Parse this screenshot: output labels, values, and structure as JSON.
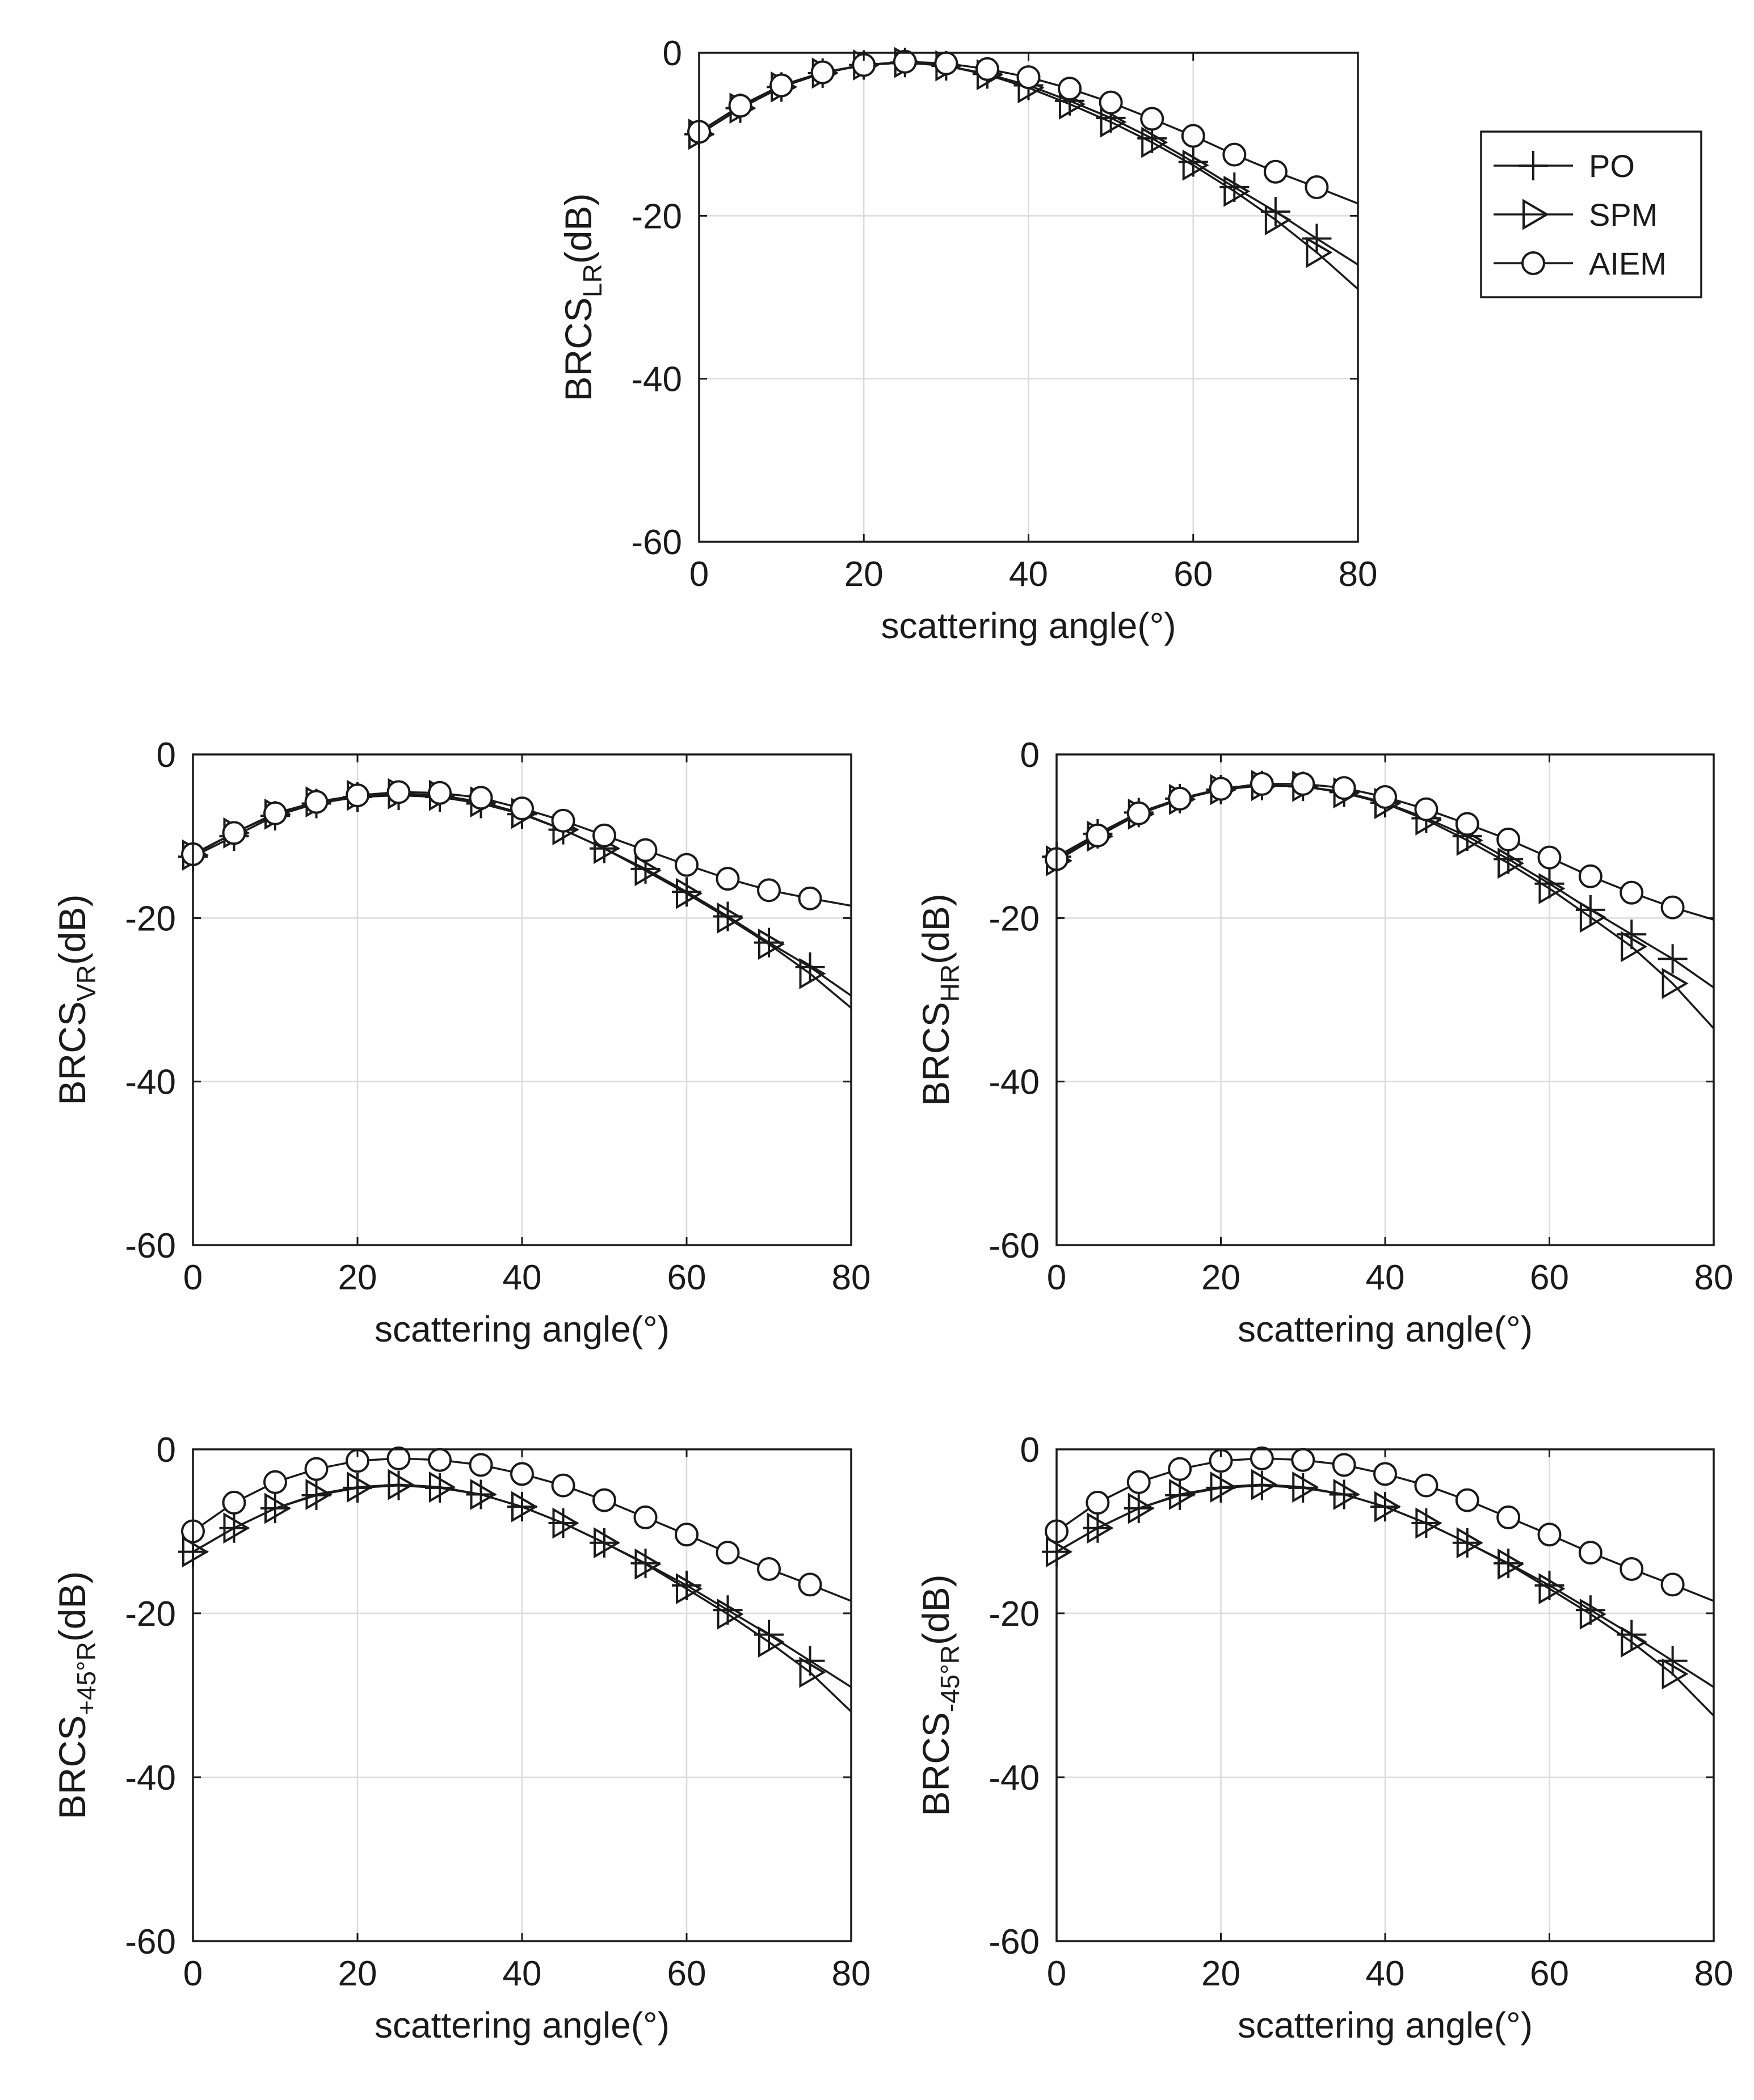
{
  "legend": {
    "entries": [
      {
        "name": "PO",
        "marker": "plus"
      },
      {
        "name": "SPM",
        "marker": "triangle-right"
      },
      {
        "name": "AIEM",
        "marker": "circle"
      }
    ],
    "placement": "right of top chart"
  },
  "chart_data": [
    {
      "id": "lr",
      "type": "line",
      "title": "",
      "xlabel": "scattering angle(°)",
      "ylabel": {
        "main": "BRCS",
        "sub": "LR",
        "suffix": "(dB)"
      },
      "xlim": [
        0,
        80
      ],
      "ylim": [
        -60,
        0
      ],
      "xticks": [
        0,
        20,
        40,
        60,
        80
      ],
      "yticks": [
        0,
        -20,
        -40,
        -60
      ],
      "grid": true,
      "series": [
        {
          "name": "PO",
          "marker": "plus",
          "x": [
            0,
            5,
            10,
            15,
            20,
            25,
            30,
            35,
            40,
            45,
            50,
            55,
            60,
            65,
            70,
            75,
            80
          ],
          "y": [
            -10,
            -6.8,
            -4.2,
            -2.5,
            -1.5,
            -1.2,
            -1.6,
            -2.6,
            -4,
            -5.9,
            -8,
            -10.5,
            -13.4,
            -16.5,
            -19.5,
            -22.8,
            -26
          ]
        },
        {
          "name": "SPM",
          "marker": "triangle-right",
          "x": [
            0,
            5,
            10,
            15,
            20,
            25,
            30,
            35,
            40,
            45,
            50,
            55,
            60,
            65,
            70,
            75,
            80
          ],
          "y": [
            -10,
            -6.8,
            -4.2,
            -2.5,
            -1.5,
            -1.2,
            -1.6,
            -2.7,
            -4.3,
            -6.3,
            -8.5,
            -11,
            -13.8,
            -17,
            -20.5,
            -24.5,
            -29
          ]
        },
        {
          "name": "AIEM",
          "marker": "circle",
          "x": [
            0,
            5,
            10,
            15,
            20,
            25,
            30,
            35,
            40,
            45,
            50,
            55,
            60,
            65,
            70,
            75,
            80
          ],
          "y": [
            -9.7,
            -6.5,
            -4,
            -2.4,
            -1.5,
            -1.1,
            -1.3,
            -2,
            -3,
            -4.4,
            -6.1,
            -8.1,
            -10.2,
            -12.5,
            -14.6,
            -16.5,
            -18.5
          ]
        }
      ]
    },
    {
      "id": "vr",
      "type": "line",
      "title": "",
      "xlabel": "scattering angle(°)",
      "ylabel": {
        "main": "BRCS",
        "sub": "VR",
        "suffix": "(dB)"
      },
      "xlim": [
        0,
        80
      ],
      "ylim": [
        -60,
        0
      ],
      "xticks": [
        0,
        20,
        40,
        60,
        80
      ],
      "yticks": [
        0,
        -20,
        -40,
        -60
      ],
      "grid": true,
      "series": [
        {
          "name": "PO",
          "marker": "plus",
          "x": [
            0,
            5,
            10,
            15,
            20,
            25,
            30,
            35,
            40,
            45,
            50,
            55,
            60,
            65,
            70,
            75,
            80
          ],
          "y": [
            -12.5,
            -10,
            -7.5,
            -6,
            -5.2,
            -5,
            -5.2,
            -6,
            -7.3,
            -9.2,
            -11.5,
            -14,
            -16.8,
            -19.8,
            -23,
            -26,
            -29.5
          ]
        },
        {
          "name": "SPM",
          "marker": "triangle-right",
          "x": [
            0,
            5,
            10,
            15,
            20,
            25,
            30,
            35,
            40,
            45,
            50,
            55,
            60,
            65,
            70,
            75,
            80
          ],
          "y": [
            -12.3,
            -9.6,
            -7.3,
            -5.8,
            -5,
            -4.8,
            -5,
            -5.8,
            -7.2,
            -9.2,
            -11.5,
            -14.2,
            -17,
            -20,
            -23.2,
            -26.8,
            -31
          ]
        },
        {
          "name": "AIEM",
          "marker": "circle",
          "x": [
            0,
            5,
            10,
            15,
            20,
            25,
            30,
            35,
            40,
            45,
            50,
            55,
            60,
            65,
            70,
            75,
            80
          ],
          "y": [
            -12.2,
            -9.6,
            -7.2,
            -5.8,
            -5,
            -4.6,
            -4.7,
            -5.3,
            -6.6,
            -8.1,
            -9.9,
            -11.7,
            -13.5,
            -15.2,
            -16.6,
            -17.6,
            -18.5
          ]
        }
      ]
    },
    {
      "id": "hr",
      "type": "line",
      "title": "",
      "xlabel": "scattering angle(°)",
      "ylabel": {
        "main": "BRCS",
        "sub": "HR",
        "suffix": "(dB)"
      },
      "xlim": [
        0,
        80
      ],
      "ylim": [
        -60,
        0
      ],
      "xticks": [
        0,
        20,
        40,
        60,
        80
      ],
      "yticks": [
        0,
        -20,
        -40,
        -60
      ],
      "grid": true,
      "series": [
        {
          "name": "PO",
          "marker": "plus",
          "x": [
            0,
            5,
            10,
            15,
            20,
            25,
            30,
            35,
            40,
            45,
            50,
            55,
            60,
            65,
            70,
            75,
            80
          ],
          "y": [
            -12.5,
            -9.7,
            -7.1,
            -5.4,
            -4.3,
            -3.8,
            -3.9,
            -4.6,
            -5.9,
            -7.8,
            -10,
            -12.8,
            -15.8,
            -19,
            -22,
            -25,
            -28.5
          ]
        },
        {
          "name": "SPM",
          "marker": "triangle-right",
          "x": [
            0,
            5,
            10,
            15,
            20,
            25,
            30,
            35,
            40,
            45,
            50,
            55,
            60,
            65,
            70,
            75,
            80
          ],
          "y": [
            -13,
            -10,
            -7.3,
            -5.5,
            -4.3,
            -3.8,
            -3.9,
            -4.7,
            -6,
            -8,
            -10.5,
            -13.3,
            -16.4,
            -19.9,
            -23.5,
            -28,
            -33.5
          ]
        },
        {
          "name": "AIEM",
          "marker": "circle",
          "x": [
            0,
            5,
            10,
            15,
            20,
            25,
            30,
            35,
            40,
            45,
            50,
            55,
            60,
            65,
            70,
            75,
            80
          ],
          "y": [
            -12.8,
            -9.9,
            -7.2,
            -5.4,
            -4.2,
            -3.6,
            -3.6,
            -4.1,
            -5.2,
            -6.7,
            -8.5,
            -10.4,
            -12.6,
            -14.9,
            -16.9,
            -18.7,
            -20.2
          ]
        }
      ]
    },
    {
      "id": "p45r",
      "type": "line",
      "title": "",
      "xlabel": "scattering angle(°)",
      "ylabel": {
        "main": "BRCS",
        "sub": "+45°R",
        "suffix": "(dB)"
      },
      "xlim": [
        0,
        80
      ],
      "ylim": [
        -60,
        0
      ],
      "xticks": [
        0,
        20,
        40,
        60,
        80
      ],
      "yticks": [
        0,
        -20,
        -40,
        -60
      ],
      "grid": true,
      "series": [
        {
          "name": "PO",
          "marker": "plus",
          "x": [
            0,
            5,
            10,
            15,
            20,
            25,
            30,
            35,
            40,
            45,
            50,
            55,
            60,
            65,
            70,
            75,
            80
          ],
          "y": [
            -12.5,
            -9.6,
            -7.2,
            -5.6,
            -4.7,
            -4.4,
            -4.7,
            -5.5,
            -7,
            -9,
            -11.4,
            -13.9,
            -16.6,
            -19.6,
            -22.6,
            -25.8,
            -29
          ]
        },
        {
          "name": "SPM",
          "marker": "triangle-right",
          "x": [
            0,
            5,
            10,
            15,
            20,
            25,
            30,
            35,
            40,
            45,
            50,
            55,
            60,
            65,
            70,
            75,
            80
          ],
          "y": [
            -12.5,
            -9.6,
            -7.2,
            -5.5,
            -4.6,
            -4.3,
            -4.6,
            -5.5,
            -7,
            -9,
            -11.4,
            -14,
            -17,
            -20.1,
            -23.5,
            -27.2,
            -32
          ]
        },
        {
          "name": "AIEM",
          "marker": "circle",
          "x": [
            0,
            5,
            10,
            15,
            20,
            25,
            30,
            35,
            40,
            45,
            50,
            55,
            60,
            65,
            70,
            75,
            80
          ],
          "y": [
            -10,
            -6.5,
            -4,
            -2.4,
            -1.4,
            -1.1,
            -1.3,
            -1.9,
            -3,
            -4.4,
            -6.2,
            -8.3,
            -10.4,
            -12.6,
            -14.6,
            -16.5,
            -18.5
          ]
        }
      ]
    },
    {
      "id": "m45r",
      "type": "line",
      "title": "",
      "xlabel": "scattering angle(°)",
      "ylabel": {
        "main": "BRCS",
        "sub": "-45°R",
        "suffix": "(dB)"
      },
      "xlim": [
        0,
        80
      ],
      "ylim": [
        -60,
        0
      ],
      "xticks": [
        0,
        20,
        40,
        60,
        80
      ],
      "yticks": [
        0,
        -20,
        -40,
        -60
      ],
      "grid": true,
      "series": [
        {
          "name": "PO",
          "marker": "plus",
          "x": [
            0,
            5,
            10,
            15,
            20,
            25,
            30,
            35,
            40,
            45,
            50,
            55,
            60,
            65,
            70,
            75,
            80
          ],
          "y": [
            -12.5,
            -9.6,
            -7.2,
            -5.6,
            -4.7,
            -4.4,
            -4.7,
            -5.5,
            -7,
            -9,
            -11.4,
            -13.9,
            -16.6,
            -19.6,
            -22.6,
            -25.8,
            -29
          ]
        },
        {
          "name": "SPM",
          "marker": "triangle-right",
          "x": [
            0,
            5,
            10,
            15,
            20,
            25,
            30,
            35,
            40,
            45,
            50,
            55,
            60,
            65,
            70,
            75,
            80
          ],
          "y": [
            -12.5,
            -9.6,
            -7.2,
            -5.5,
            -4.6,
            -4.3,
            -4.6,
            -5.5,
            -7,
            -9,
            -11.4,
            -14,
            -17,
            -20.1,
            -23.5,
            -27.4,
            -32.5
          ]
        },
        {
          "name": "AIEM",
          "marker": "circle",
          "x": [
            0,
            5,
            10,
            15,
            20,
            25,
            30,
            35,
            40,
            45,
            50,
            55,
            60,
            65,
            70,
            75,
            80
          ],
          "y": [
            -10,
            -6.5,
            -4,
            -2.4,
            -1.4,
            -1.1,
            -1.3,
            -1.9,
            -3,
            -4.4,
            -6.2,
            -8.3,
            -10.4,
            -12.6,
            -14.6,
            -16.5,
            -18.5
          ]
        }
      ]
    }
  ]
}
